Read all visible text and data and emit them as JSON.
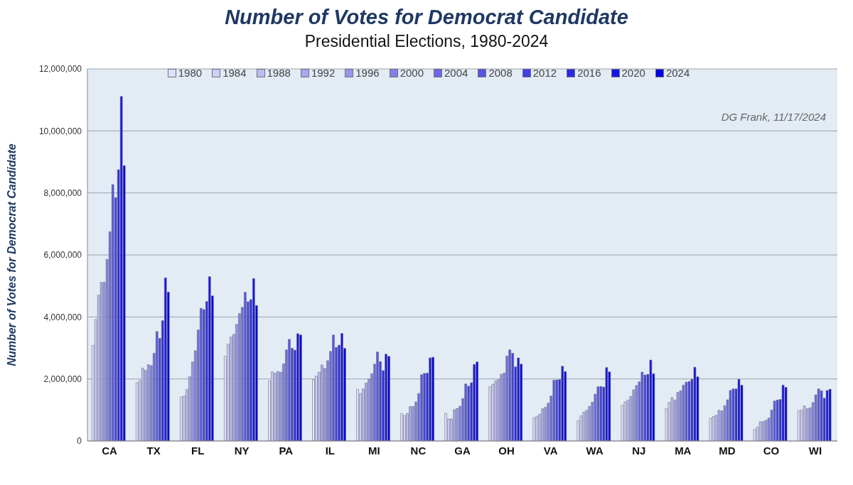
{
  "chart_data": {
    "type": "bar",
    "title": "Number of Votes for Democrat Candidate",
    "subtitle": "Presidential Elections, 1980-2024",
    "ylabel": "Number of Votes for Democrat Candidate",
    "annotations": [
      "DG Frank, 11/17/2024"
    ],
    "categories": [
      "CA",
      "TX",
      "FL",
      "NY",
      "PA",
      "IL",
      "MI",
      "NC",
      "GA",
      "OH",
      "VA",
      "WA",
      "NJ",
      "MA",
      "MD",
      "CO",
      "WI"
    ],
    "ylim": [
      0,
      12000000
    ],
    "yticks": [
      {
        "value": 0,
        "label": "0"
      },
      {
        "value": 2000000,
        "label": "2,000,000"
      },
      {
        "value": 4000000,
        "label": "4,000,000"
      },
      {
        "value": 6000000,
        "label": "6,000,000"
      },
      {
        "value": 8000000,
        "label": "8,000,000"
      },
      {
        "value": 10000000,
        "label": "10,000,000"
      },
      {
        "value": 12000000,
        "label": "12,000,000"
      }
    ],
    "grid": "y",
    "legend": "top",
    "series": [
      {
        "name": "1980",
        "color": "#e0e0ff",
        "values": [
          3080000,
          1880000,
          1420000,
          2730000,
          1940000,
          1980000,
          1660000,
          880000,
          890000,
          1750000,
          750000,
          650000,
          1150000,
          1050000,
          730000,
          370000,
          980000
        ]
      },
      {
        "name": "1984",
        "color": "#cfcff8",
        "values": [
          3920000,
          1950000,
          1450000,
          3120000,
          2230000,
          2090000,
          1530000,
          820000,
          710000,
          1830000,
          800000,
          810000,
          1260000,
          1240000,
          790000,
          450000,
          1000000
        ]
      },
      {
        "name": "1988",
        "color": "#bcbcf2",
        "values": [
          4700000,
          2350000,
          1660000,
          3350000,
          2190000,
          2220000,
          1680000,
          890000,
          710000,
          1940000,
          860000,
          930000,
          1320000,
          1400000,
          830000,
          620000,
          1130000
        ]
      },
      {
        "name": "1992",
        "color": "#a8a8ee",
        "values": [
          5120000,
          2280000,
          2070000,
          3440000,
          2240000,
          2450000,
          1870000,
          1110000,
          1010000,
          1980000,
          1040000,
          990000,
          1440000,
          1320000,
          990000,
          630000,
          1040000
        ]
      },
      {
        "name": "1996",
        "color": "#9696ea",
        "values": [
          5120000,
          2460000,
          2550000,
          3760000,
          2220000,
          2340000,
          1990000,
          1110000,
          1050000,
          2150000,
          1090000,
          1120000,
          1650000,
          1570000,
          970000,
          670000,
          1070000
        ]
      },
      {
        "name": "2000",
        "color": "#8080e6",
        "values": [
          5860000,
          2430000,
          2910000,
          4110000,
          2490000,
          2590000,
          2170000,
          1260000,
          1120000,
          2190000,
          1220000,
          1250000,
          1790000,
          1620000,
          1140000,
          740000,
          1240000
        ]
      },
      {
        "name": "2004",
        "color": "#6a6ae6",
        "values": [
          6750000,
          2830000,
          3580000,
          4310000,
          2940000,
          2890000,
          2480000,
          1530000,
          1370000,
          2740000,
          1450000,
          1510000,
          1910000,
          1800000,
          1330000,
          1000000,
          1490000
        ]
      },
      {
        "name": "2008",
        "color": "#5555e6",
        "values": [
          8270000,
          3530000,
          4280000,
          4800000,
          3280000,
          3420000,
          2870000,
          2140000,
          1840000,
          2940000,
          1960000,
          1750000,
          2220000,
          1900000,
          1630000,
          1290000,
          1680000
        ]
      },
      {
        "name": "2012",
        "color": "#4040e6",
        "values": [
          7850000,
          3310000,
          4240000,
          4490000,
          2990000,
          3020000,
          2560000,
          2180000,
          1770000,
          2830000,
          1970000,
          1760000,
          2130000,
          1920000,
          1680000,
          1320000,
          1620000
        ]
      },
      {
        "name": "2016",
        "color": "#2a2ae6",
        "values": [
          8750000,
          3880000,
          4500000,
          4560000,
          2930000,
          3090000,
          2270000,
          2190000,
          1880000,
          2390000,
          1980000,
          1740000,
          2150000,
          1990000,
          1680000,
          1340000,
          1380000
        ]
      },
      {
        "name": "2020",
        "color": "#1414e6",
        "values": [
          11110000,
          5260000,
          5300000,
          5240000,
          3460000,
          3470000,
          2800000,
          2680000,
          2470000,
          2680000,
          2410000,
          2370000,
          2610000,
          2380000,
          1990000,
          1800000,
          1630000
        ]
      },
      {
        "name": "2024",
        "color": "#0000e0",
        "values": [
          8880000,
          4800000,
          4680000,
          4370000,
          3420000,
          2990000,
          2730000,
          2700000,
          2550000,
          2480000,
          2240000,
          2230000,
          2170000,
          2070000,
          1800000,
          1730000,
          1670000
        ]
      }
    ]
  }
}
